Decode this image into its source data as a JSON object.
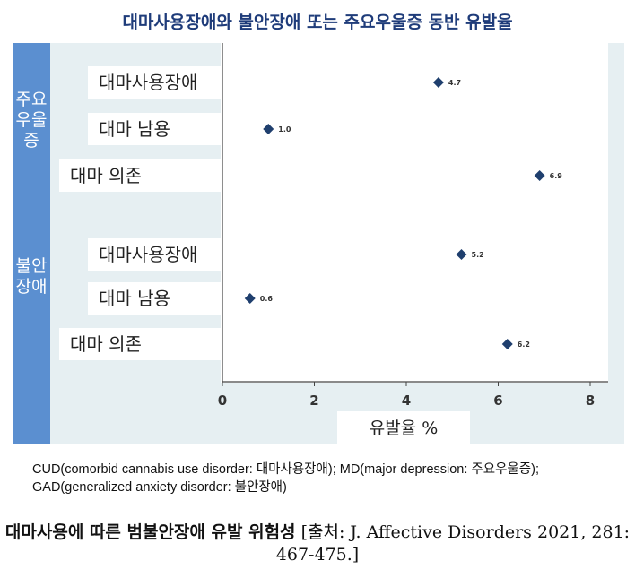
{
  "title": "대마사용장애와 불안장애 또는 주요우울증 동반 유발율",
  "groups": {
    "md_label": "주요우울증",
    "gad_label": "불안장애"
  },
  "chart_data": {
    "type": "scatter",
    "title": "대마사용장애와 불안장애 또는 주요우울증 동반 유발율",
    "xlabel": "유발율 %",
    "xlim": [
      0,
      8
    ],
    "xticks": [
      0,
      2,
      4,
      6,
      8
    ],
    "points": [
      {
        "group": "주요우울증",
        "category": "대마사용장애",
        "value": 4.7,
        "label": "4.7"
      },
      {
        "group": "주요우울증",
        "category": "대마 남용",
        "value": 1.0,
        "label": "1.0"
      },
      {
        "group": "주요우울증",
        "category": "대마 의존",
        "value": 6.9,
        "label": "6.9"
      },
      {
        "group": "불안장애",
        "category": "대마사용장애",
        "value": 5.2,
        "label": "5.2"
      },
      {
        "group": "불안장애",
        "category": "대마 남용",
        "value": 0.6,
        "label": "0.6"
      },
      {
        "group": "불안장애",
        "category": "대마 의존",
        "value": 6.2,
        "label": "6.2"
      }
    ],
    "marker_color": "#1f3f6e"
  },
  "caption": {
    "abbrev": "CUD(comorbid cannabis use disorder: 대마사용장애); MD(major depression: 주요우울증); GAD(generalized anxiety disorder: 불안장애)",
    "title_bold": "대마사용에 따른 범불안장애 유발 위험성",
    "source": "[출처: J. Affective Disorders 2021, 281: 467-475.]"
  }
}
